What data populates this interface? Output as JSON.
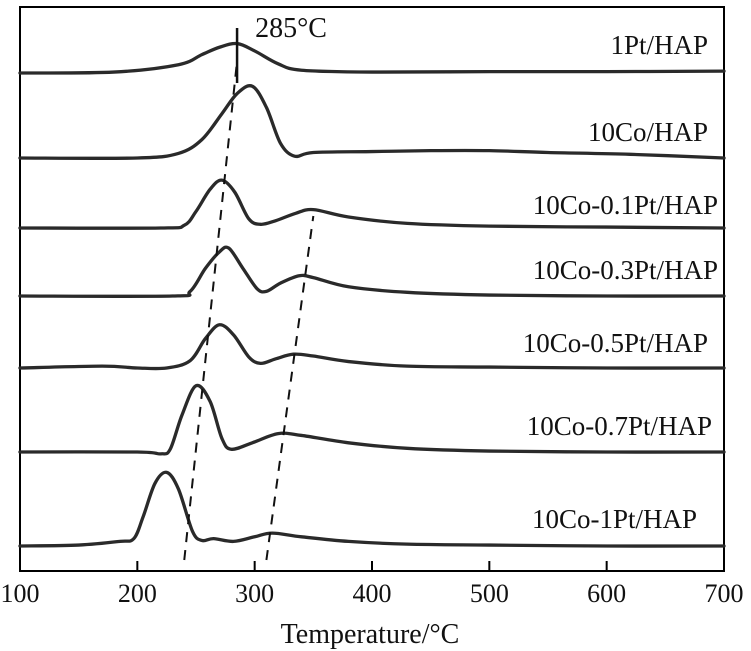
{
  "chart_data": {
    "type": "line",
    "title": "",
    "xlabel": "Temperature/°C",
    "ylabel": "",
    "xlim": [
      100,
      700
    ],
    "x_ticks": [
      100,
      200,
      300,
      400,
      500,
      600,
      700
    ],
    "series": [
      {
        "name": "1Pt/HAP",
        "points": [
          [
            100,
            0.0
          ],
          [
            180,
            0.01
          ],
          [
            235,
            0.09
          ],
          [
            255,
            0.2
          ],
          [
            270,
            0.28
          ],
          [
            285,
            0.32
          ],
          [
            300,
            0.24
          ],
          [
            320,
            0.1
          ],
          [
            340,
            0.03
          ],
          [
            400,
            0.01
          ],
          [
            500,
            0.015
          ],
          [
            600,
            0.015
          ],
          [
            700,
            0.02
          ]
        ]
      },
      {
        "name": "10Co/HAP",
        "points": [
          [
            100,
            0.0
          ],
          [
            200,
            0.0
          ],
          [
            235,
            0.05
          ],
          [
            255,
            0.2
          ],
          [
            272,
            0.48
          ],
          [
            285,
            0.7
          ],
          [
            298,
            0.78
          ],
          [
            310,
            0.55
          ],
          [
            322,
            0.16
          ],
          [
            334,
            0.02
          ],
          [
            350,
            0.06
          ],
          [
            400,
            0.07
          ],
          [
            450,
            0.08
          ],
          [
            500,
            0.08
          ],
          [
            550,
            0.06
          ],
          [
            620,
            0.04
          ],
          [
            700,
            0.0
          ]
        ]
      },
      {
        "name": "10Co-0.1Pt/HAP",
        "points": [
          [
            100,
            0.0
          ],
          [
            220,
            0.0
          ],
          [
            240,
            0.03
          ],
          [
            250,
            0.18
          ],
          [
            262,
            0.42
          ],
          [
            272,
            0.52
          ],
          [
            283,
            0.39
          ],
          [
            295,
            0.1
          ],
          [
            305,
            0.04
          ],
          [
            318,
            0.08
          ],
          [
            335,
            0.16
          ],
          [
            350,
            0.2
          ],
          [
            380,
            0.12
          ],
          [
            430,
            0.05
          ],
          [
            500,
            0.02
          ],
          [
            600,
            0.01
          ],
          [
            700,
            0.0
          ]
        ]
      },
      {
        "name": "10Co-0.3Pt/HAP",
        "points": [
          [
            100,
            0.0
          ],
          [
            230,
            0.0
          ],
          [
            245,
            0.05
          ],
          [
            258,
            0.3
          ],
          [
            270,
            0.48
          ],
          [
            278,
            0.52
          ],
          [
            290,
            0.3
          ],
          [
            302,
            0.08
          ],
          [
            310,
            0.05
          ],
          [
            322,
            0.14
          ],
          [
            338,
            0.22
          ],
          [
            350,
            0.2
          ],
          [
            380,
            0.1
          ],
          [
            430,
            0.04
          ],
          [
            500,
            0.01
          ],
          [
            600,
            0.0
          ],
          [
            700,
            0.0
          ]
        ]
      },
      {
        "name": "10Co-0.5Pt/HAP",
        "points": [
          [
            100,
            0.0
          ],
          [
            170,
            0.02
          ],
          [
            200,
            0.0
          ],
          [
            225,
            0.0
          ],
          [
            245,
            0.08
          ],
          [
            258,
            0.32
          ],
          [
            270,
            0.47
          ],
          [
            282,
            0.36
          ],
          [
            295,
            0.12
          ],
          [
            305,
            0.05
          ],
          [
            318,
            0.1
          ],
          [
            333,
            0.15
          ],
          [
            350,
            0.13
          ],
          [
            380,
            0.07
          ],
          [
            430,
            0.02
          ],
          [
            500,
            0.01
          ],
          [
            600,
            0.0
          ],
          [
            700,
            0.0
          ]
        ]
      },
      {
        "name": "10Co-0.7Pt/HAP",
        "points": [
          [
            100,
            0.0
          ],
          [
            200,
            0.0
          ],
          [
            220,
            -0.02
          ],
          [
            228,
            0.03
          ],
          [
            238,
            0.4
          ],
          [
            250,
            0.72
          ],
          [
            262,
            0.55
          ],
          [
            272,
            0.15
          ],
          [
            280,
            0.03
          ],
          [
            298,
            0.1
          ],
          [
            320,
            0.2
          ],
          [
            340,
            0.18
          ],
          [
            380,
            0.1
          ],
          [
            430,
            0.04
          ],
          [
            500,
            0.01
          ],
          [
            600,
            0.0
          ],
          [
            700,
            0.0
          ]
        ]
      },
      {
        "name": "10Co-1Pt/HAP",
        "points": [
          [
            100,
            0.0
          ],
          [
            150,
            0.01
          ],
          [
            185,
            0.05
          ],
          [
            197,
            0.08
          ],
          [
            205,
            0.32
          ],
          [
            215,
            0.68
          ],
          [
            225,
            0.8
          ],
          [
            235,
            0.62
          ],
          [
            247,
            0.16
          ],
          [
            255,
            0.06
          ],
          [
            265,
            0.08
          ],
          [
            282,
            0.05
          ],
          [
            300,
            0.1
          ],
          [
            315,
            0.14
          ],
          [
            340,
            0.1
          ],
          [
            380,
            0.05
          ],
          [
            430,
            0.02
          ],
          [
            500,
            0.01
          ],
          [
            600,
            0.0
          ],
          [
            700,
            0.0
          ]
        ]
      }
    ],
    "annotations": [
      {
        "text": "285°C",
        "x": 285
      }
    ],
    "guide_lines": [
      {
        "from": [
          240,
          "10Co-1Pt/HAP"
        ],
        "to": [
          285,
          "1Pt/HAP"
        ]
      },
      {
        "from": [
          310,
          "10Co-1Pt/HAP"
        ],
        "to": [
          350,
          "10Co-0.1Pt/HAP"
        ]
      }
    ],
    "grid": false,
    "legend": "inline-labels"
  }
}
